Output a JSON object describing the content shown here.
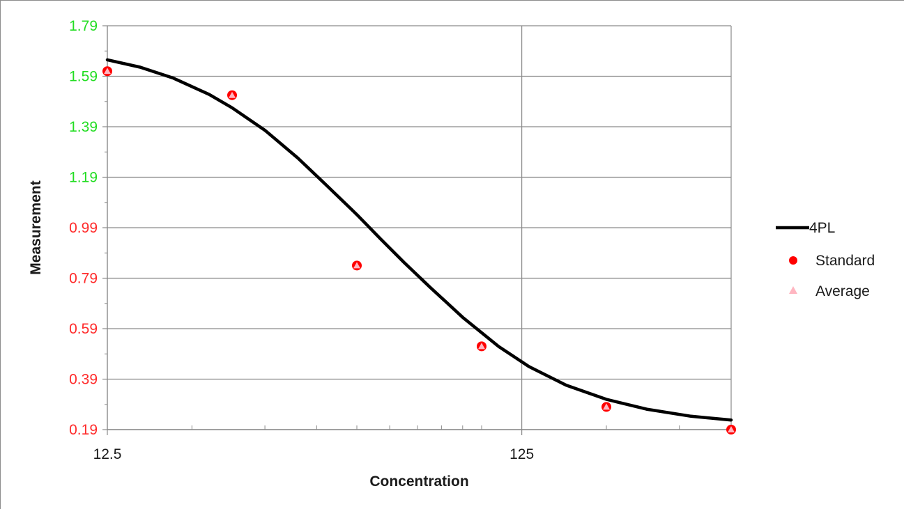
{
  "chart_data": {
    "type": "scatter",
    "title": "",
    "xlabel": "Concentration",
    "ylabel": "Measurement",
    "x_scale": "log",
    "xlim": [
      12.5,
      400
    ],
    "ylim": [
      0.19,
      1.79
    ],
    "x_tick_labels": [
      {
        "value": 12.5,
        "label": "12.5"
      },
      {
        "value": 125,
        "label": "125"
      }
    ],
    "y_ticks": [
      {
        "value": 1.79,
        "label": "1.79",
        "color": "#22dd22"
      },
      {
        "value": 1.59,
        "label": "1.59",
        "color": "#22dd22"
      },
      {
        "value": 1.39,
        "label": "1.39",
        "color": "#22dd22"
      },
      {
        "value": 1.19,
        "label": "1.19",
        "color": "#22dd22"
      },
      {
        "value": 0.99,
        "label": "0.99",
        "color": "#ff2a2a"
      },
      {
        "value": 0.79,
        "label": "0.79",
        "color": "#ff2a2a"
      },
      {
        "value": 0.59,
        "label": "0.59",
        "color": "#ff2a2a"
      },
      {
        "value": 0.39,
        "label": "0.39",
        "color": "#ff2a2a"
      },
      {
        "value": 0.19,
        "label": "0.19",
        "color": "#ff2a2a"
      }
    ],
    "grid": true,
    "legend_position": "right",
    "series": [
      {
        "name": "4PL",
        "kind": "line",
        "color": "#000000",
        "x": [
          12.5,
          15,
          18,
          22,
          25,
          30,
          36,
          42,
          50,
          57,
          65,
          75,
          90,
          110,
          130,
          160,
          200,
          250,
          320,
          400
        ],
        "y": [
          1.655,
          1.626,
          1.583,
          1.518,
          1.465,
          1.376,
          1.266,
          1.162,
          1.042,
          0.946,
          0.852,
          0.755,
          0.635,
          0.519,
          0.44,
          0.366,
          0.31,
          0.271,
          0.243,
          0.228
        ]
      },
      {
        "name": "Standard",
        "kind": "points",
        "marker": "circle",
        "color": "#ff0000",
        "x": [
          12.5,
          25,
          50,
          100,
          200,
          400
        ],
        "y": [
          1.61,
          1.515,
          0.84,
          0.52,
          0.28,
          0.19
        ]
      },
      {
        "name": "Average",
        "kind": "points",
        "marker": "triangle",
        "color": "#ffb6c1",
        "x": [
          12.5,
          25,
          50,
          100,
          200,
          400
        ],
        "y": [
          1.61,
          1.515,
          0.84,
          0.52,
          0.28,
          0.19
        ]
      }
    ]
  }
}
